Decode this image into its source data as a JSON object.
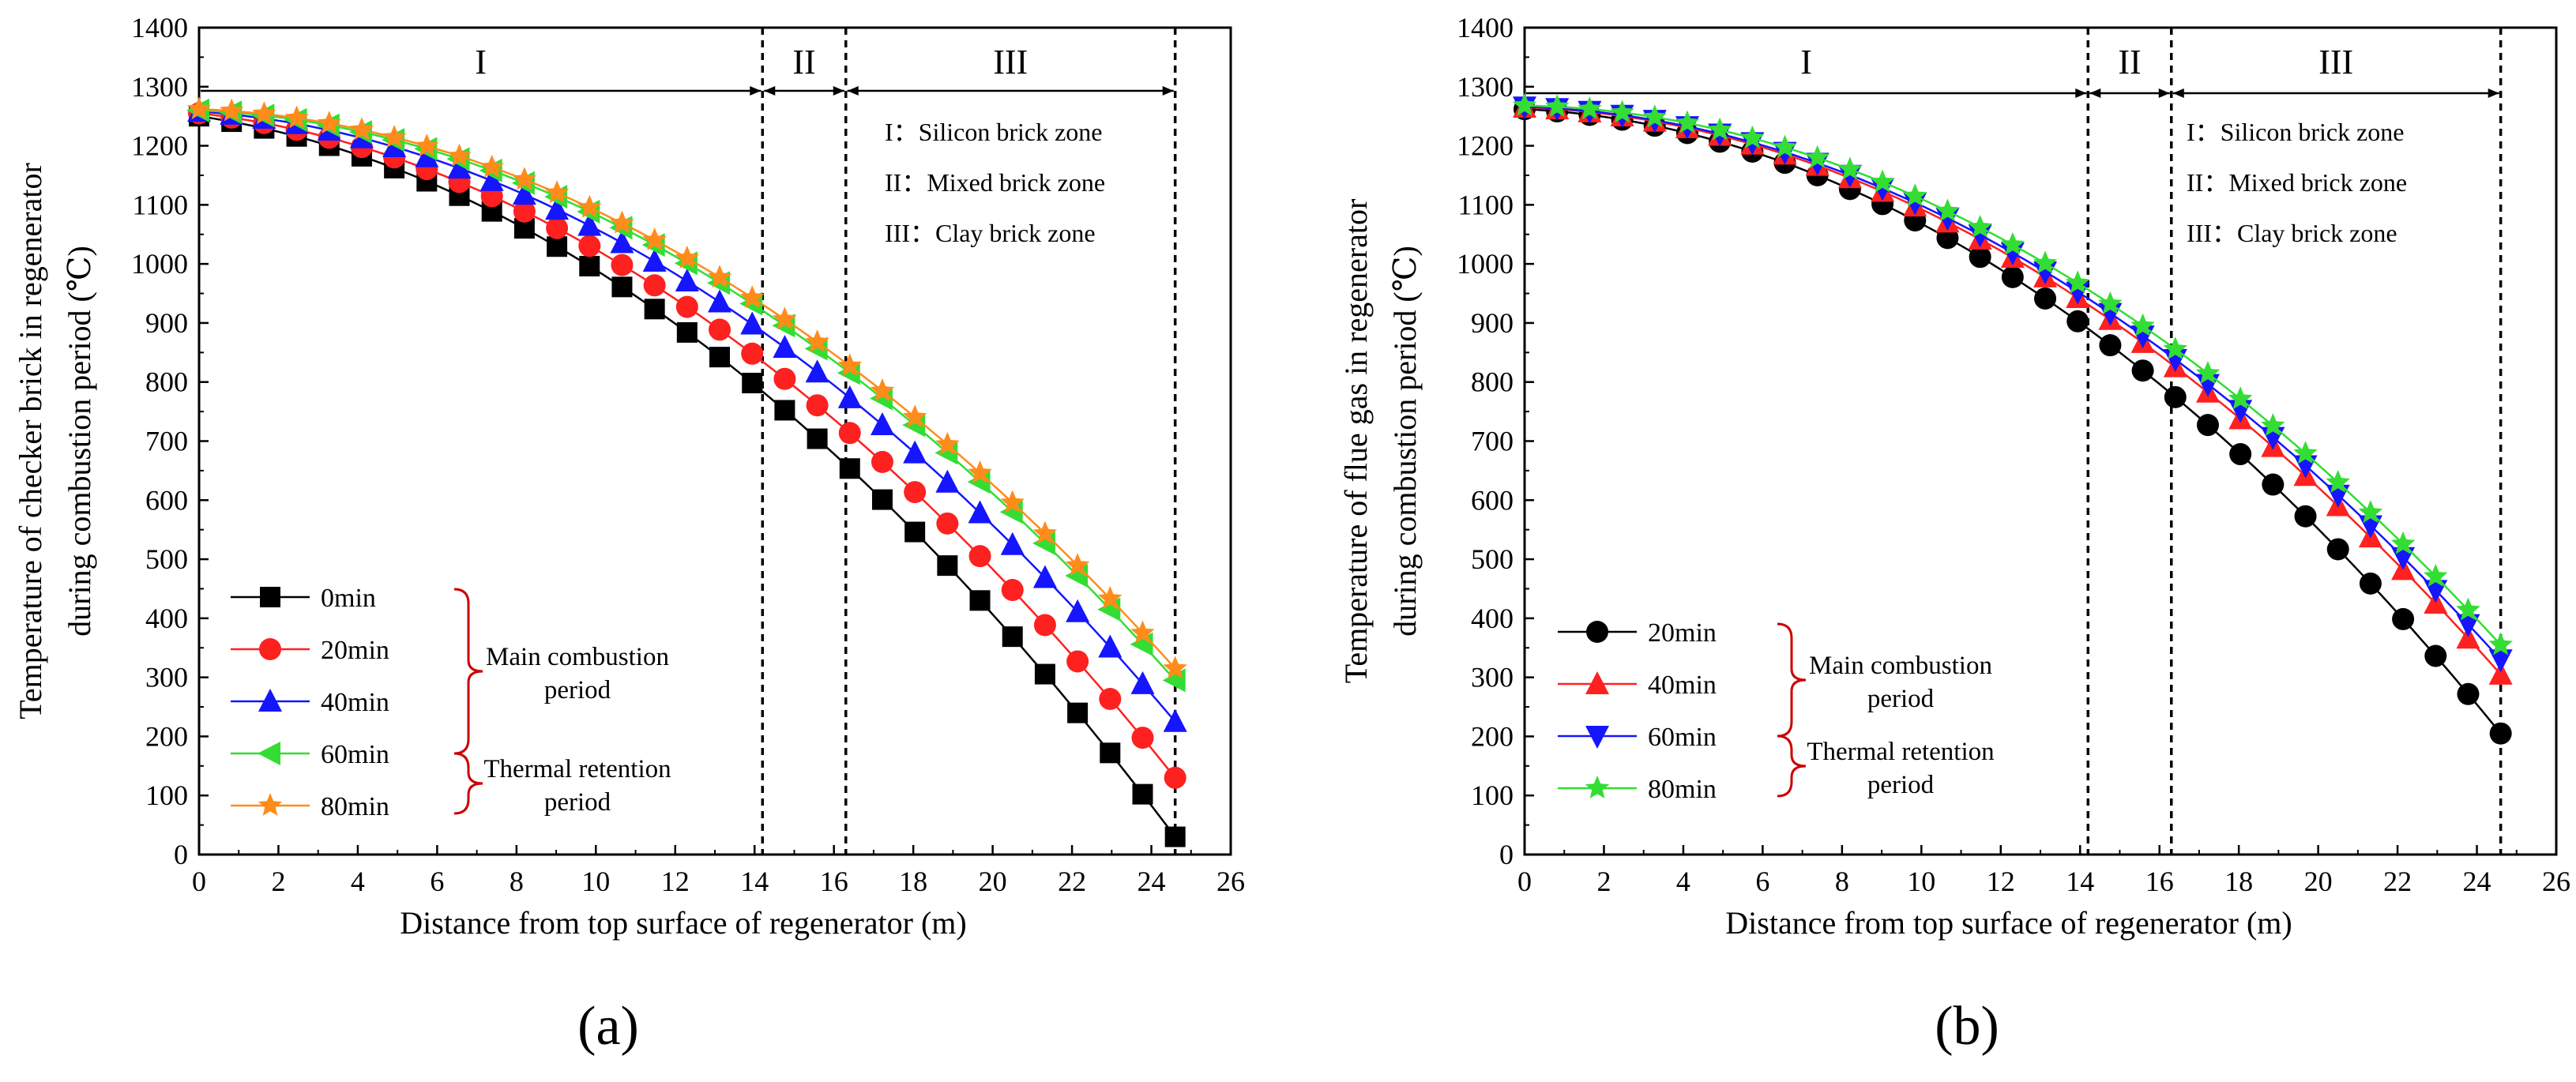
{
  "chart_data": [
    {
      "type": "line",
      "panel": "a",
      "caption": "(a)",
      "xlabel": "Distance from top surface of regenerator (m)",
      "ylabel_line1": "Temperature of checker brick in regenerator",
      "ylabel_line2": "during combustion period (℃)",
      "xlim": [
        0,
        26
      ],
      "ylim": [
        0,
        1400
      ],
      "xticks": [
        0,
        2,
        4,
        6,
        8,
        10,
        12,
        14,
        16,
        18,
        20,
        22,
        24,
        26
      ],
      "yticks": [
        0,
        100,
        200,
        300,
        400,
        500,
        600,
        700,
        800,
        900,
        1000,
        1100,
        1200,
        1300,
        1400
      ],
      "zone_boundaries": [
        14.2,
        16.3,
        24.6
      ],
      "zones": [
        "I",
        "II",
        "III"
      ],
      "zone_notes": [
        "I：Silicon brick zone",
        "II：Mixed brick zone",
        "III：Clay brick zone"
      ],
      "legend_position": "bottom-left",
      "brace_labels": [
        [
          "Main combustion",
          "period"
        ],
        [
          "Thermal retention",
          "period"
        ]
      ],
      "series": [
        {
          "name": "0min",
          "color": "#000000",
          "marker": "square",
          "at": [
            1250,
            795
          ],
          "endpoint": 30
        },
        {
          "name": "20min",
          "color": "#ff2020",
          "marker": "circle",
          "at": [
            1255,
            845
          ],
          "endpoint": 130
        },
        {
          "name": "40min",
          "color": "#1515ff",
          "marker": "triangle-up",
          "at": [
            1258,
            895
          ],
          "endpoint": 225
        },
        {
          "name": "60min",
          "color": "#33dd33",
          "marker": "triangle-left",
          "at": [
            1260,
            930
          ],
          "endpoint": 295
        },
        {
          "name": "80min",
          "color": "#ff8c1a",
          "marker": "star",
          "at": [
            1262,
            940
          ],
          "endpoint": 315
        }
      ]
    },
    {
      "type": "line",
      "panel": "b",
      "caption": "(b)",
      "xlabel": "Distance from top surface of regenerator (m)",
      "ylabel_line1": "Temperature of flue gas in regenerator",
      "ylabel_line2": "during combustion period (℃)",
      "xlim": [
        0,
        26
      ],
      "ylim": [
        0,
        1400
      ],
      "xticks": [
        0,
        2,
        4,
        6,
        8,
        10,
        12,
        14,
        16,
        18,
        20,
        22,
        24,
        26
      ],
      "yticks": [
        0,
        100,
        200,
        300,
        400,
        500,
        600,
        700,
        800,
        900,
        1000,
        1100,
        1200,
        1300,
        1400
      ],
      "zone_boundaries": [
        14.2,
        16.3,
        24.6
      ],
      "zones": [
        "I",
        "II",
        "III"
      ],
      "zone_notes": [
        "I：Silicon brick zone",
        "II：Mixed brick zone",
        "III：Clay brick zone"
      ],
      "legend_position": "bottom-left",
      "brace_labels": [
        [
          "Main combustion",
          "period"
        ],
        [
          "Thermal retention",
          "period"
        ]
      ],
      "series": [
        {
          "name": "20min",
          "color": "#000000",
          "marker": "circle",
          "at": [
            1262,
            900
          ],
          "endpoint": 205
        },
        {
          "name": "40min",
          "color": "#ff2020",
          "marker": "triangle-up",
          "at": [
            1265,
            940
          ],
          "endpoint": 305
        },
        {
          "name": "60min",
          "color": "#1515ff",
          "marker": "triangle-down",
          "at": [
            1266,
            950
          ],
          "endpoint": 330
        },
        {
          "name": "80min",
          "color": "#33dd33",
          "marker": "star",
          "at": [
            1268,
            965
          ],
          "endpoint": 355
        }
      ]
    }
  ]
}
